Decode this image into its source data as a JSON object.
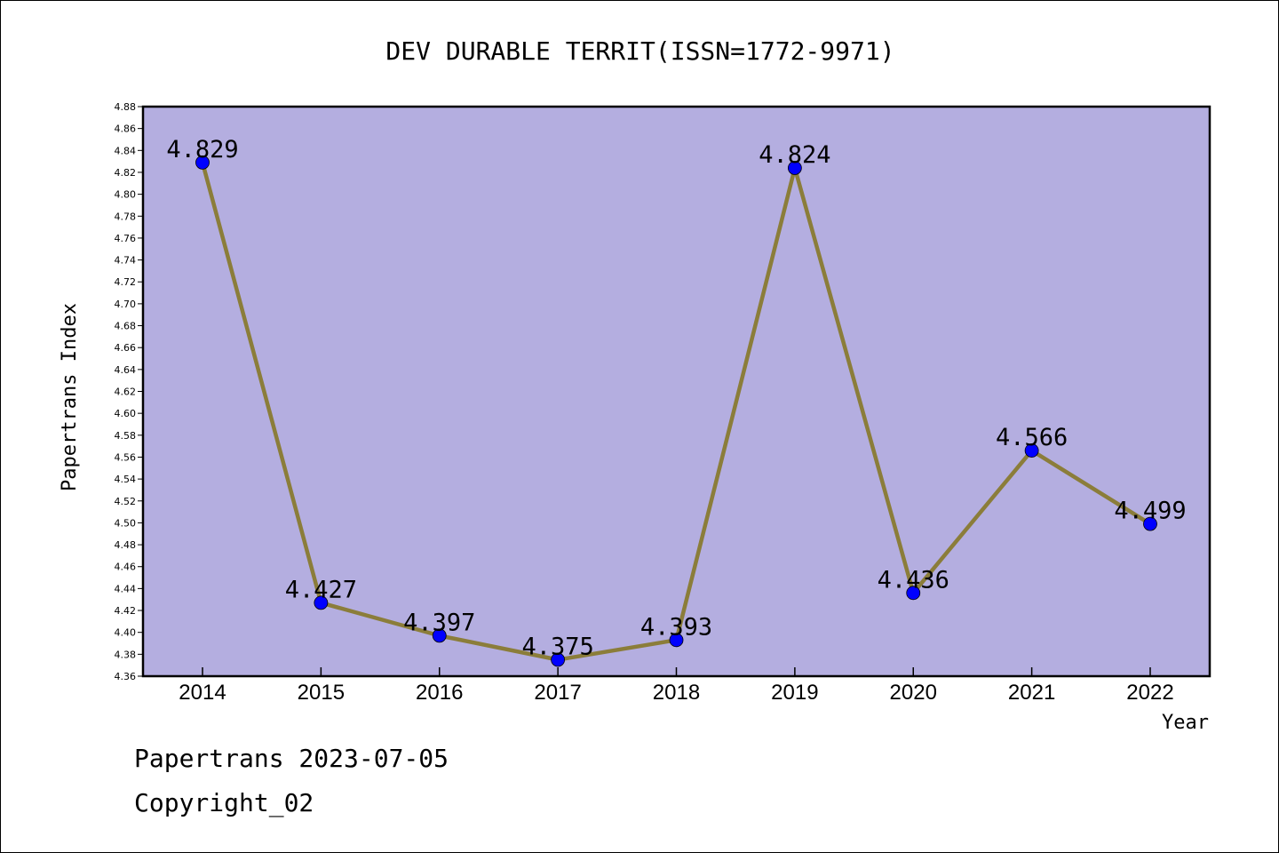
{
  "chart_data": {
    "type": "line",
    "title": "DEV DURABLE TERRIT(ISSN=1772-9971)",
    "xlabel": "Year",
    "ylabel": "Papertrans Index",
    "categories": [
      "2014",
      "2015",
      "2016",
      "2017",
      "2018",
      "2019",
      "2020",
      "2021",
      "2022"
    ],
    "series": [
      {
        "values": [
          4.829,
          4.427,
          4.397,
          4.375,
          4.393,
          4.824,
          4.436,
          4.566,
          4.499
        ]
      }
    ],
    "value_labels": [
      "4.829",
      "4.427",
      "4.397",
      "4.375",
      "4.393",
      "4.824",
      "4.436",
      "4.566",
      "4.499"
    ],
    "ylim": [
      4.36,
      4.88
    ],
    "ytick_step": 0.02,
    "yticks": [
      "4.36",
      "4.38",
      "4.40",
      "4.42",
      "4.44",
      "4.46",
      "4.48",
      "4.50",
      "4.52",
      "4.54",
      "4.56",
      "4.58",
      "4.60",
      "4.62",
      "4.64",
      "4.66",
      "4.68",
      "4.70",
      "4.72",
      "4.74",
      "4.76",
      "4.78",
      "4.80",
      "4.82",
      "4.84",
      "4.86",
      "4.88"
    ],
    "grid": false,
    "legend": "none",
    "colors": {
      "plot_background": "#b4aee0",
      "line": "#8b7d3a",
      "marker": "#0000ff"
    }
  },
  "footer": {
    "date_line": "Papertrans 2023-07-05",
    "copyright_line": "Copyright_02"
  }
}
